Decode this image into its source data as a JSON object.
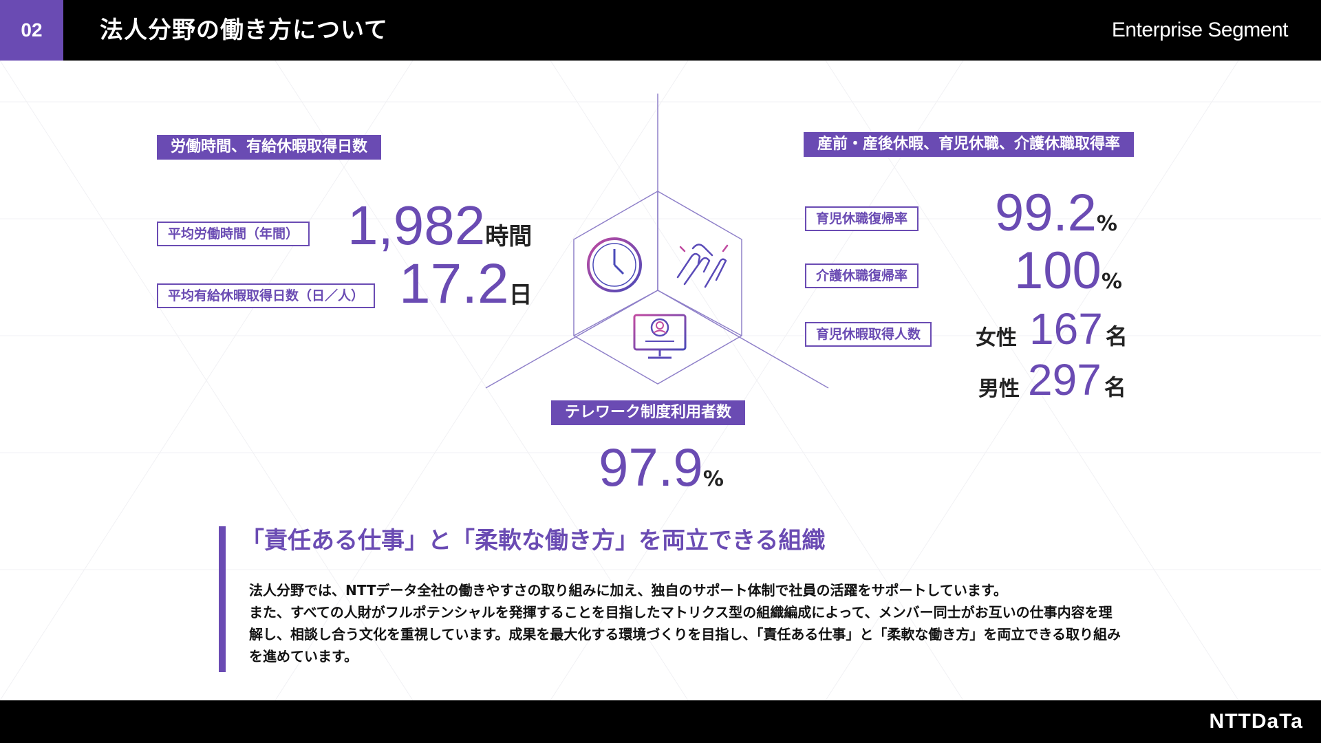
{
  "header": {
    "page_number": "02",
    "title": "法人分野の働き方について",
    "segment": "Enterprise Segment"
  },
  "footer": {
    "logo": "NTTDaTa"
  },
  "colors": {
    "accent": "#6a4bb3",
    "bar": "#000000"
  },
  "work_hours": {
    "section_title": "労働時間、有給休暇取得日数",
    "avg_hours_label": "平均労働時間（年間）",
    "avg_hours_value": "1,982",
    "avg_hours_unit": "時間",
    "avg_leave_label": "平均有給休暇取得日数（日／人）",
    "avg_leave_value": "17.2",
    "avg_leave_unit": "日"
  },
  "leave": {
    "section_title": "産前・産後休暇、育児休職、介護休職取得率",
    "childcare_return_label": "育児休職復帰率",
    "childcare_return_value": "99.2",
    "childcare_return_unit": "%",
    "nursing_return_label": "介護休職復帰率",
    "nursing_return_value": "100",
    "nursing_return_unit": "%",
    "childcare_count_label": "育児休暇取得人数",
    "female_label": "女性",
    "female_value": "167",
    "female_unit": "名",
    "male_label": "男性",
    "male_value": "297",
    "male_unit": "名"
  },
  "telework": {
    "section_title": "テレワーク制度利用者数",
    "value": "97.9",
    "unit": "%"
  },
  "icons": [
    "clock-icon",
    "handshake-icon",
    "telework-monitor-icon"
  ],
  "message": {
    "headline": "「責任ある仕事」と「柔軟な働き方」を両立できる組織",
    "body_1": "法人分野では、NTTデータ全社の働きやすさの取り組みに加え、独自のサポート体制で社員の活躍をサポートしています。",
    "body_2": "また、すべての人財がフルポテンシャルを発揮することを目指したマトリクス型の組織編成によって、メンバー同士がお互いの仕事内容を理解し、相談し合う文化を重視しています。成果を最大化する環境づくりを目指し、「責任ある仕事」と「柔軟な働き方」を両立できる取り組みを進めています。"
  }
}
